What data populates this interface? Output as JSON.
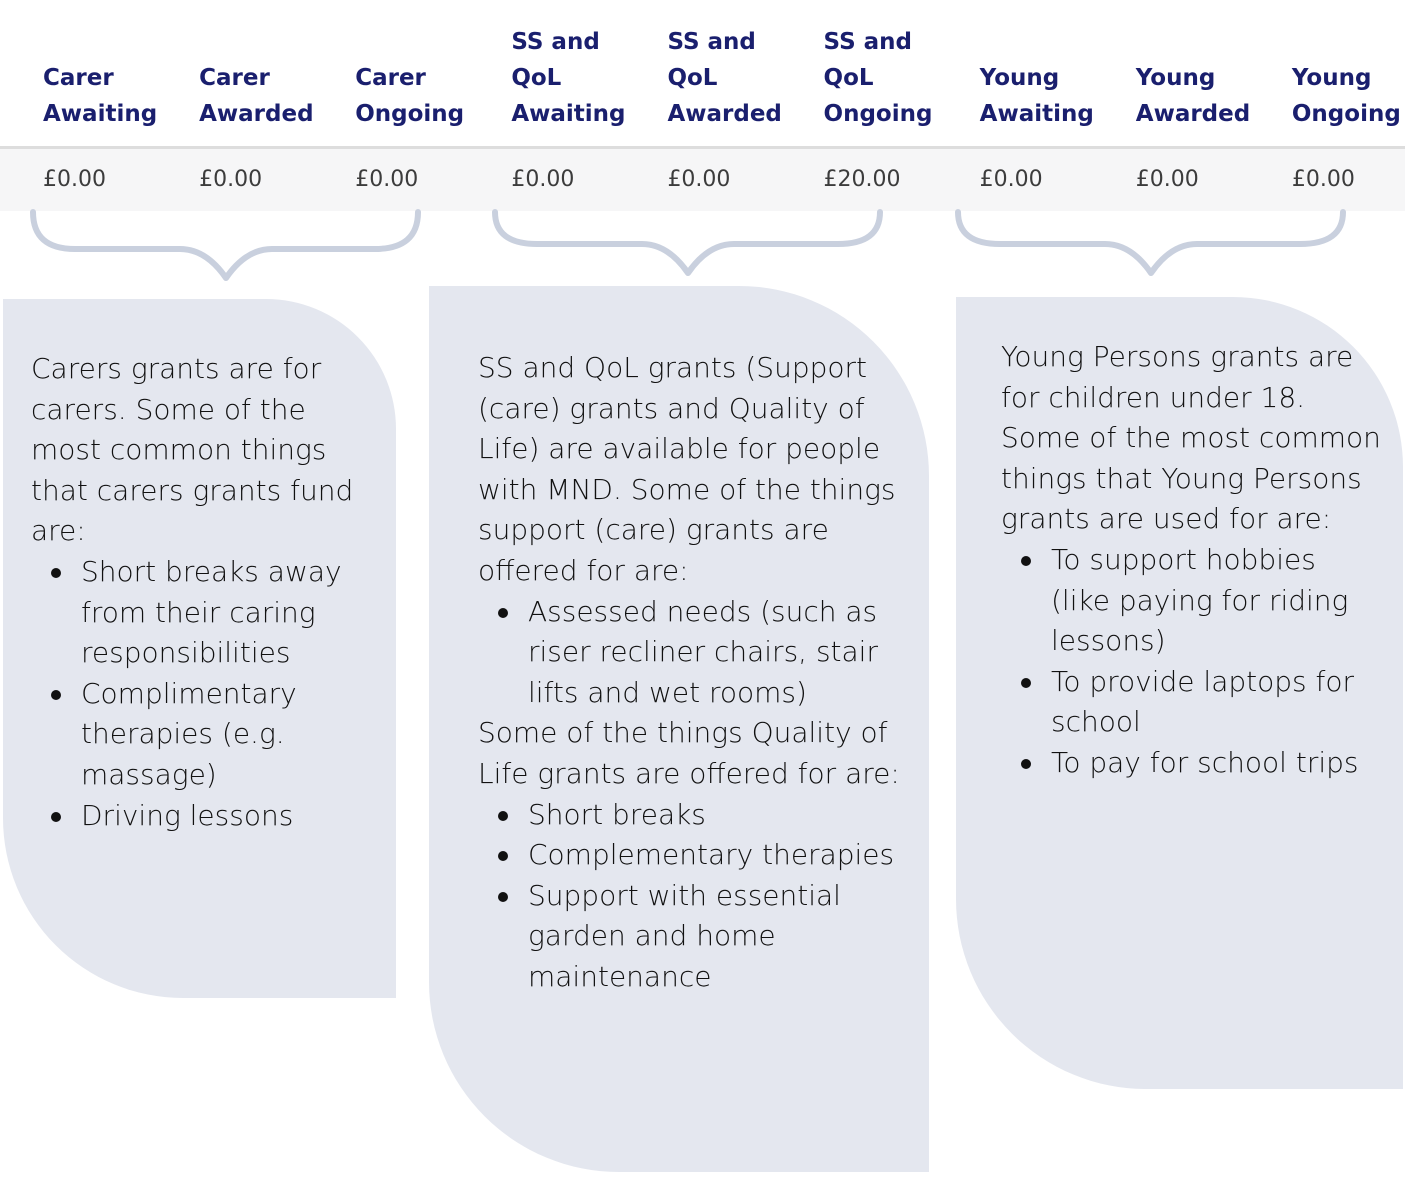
{
  "table": {
    "headers": [
      "Carer Awaiting",
      "Carer Awarded",
      "Carer Ongoing",
      "SS and QoL Awaiting",
      "SS and QoL Awarded",
      "SS and QoL Ongoing",
      "Young Awaiting",
      "Young Awarded",
      "Young Ongoing"
    ],
    "values": [
      "£0.00",
      "£0.00",
      "£0.00",
      "£0.00",
      "£0.00",
      "£20.00",
      "£0.00",
      "£0.00",
      "£0.00"
    ]
  },
  "cards": {
    "carers": {
      "intro": "Carers grants are for carers. Some of the most common things that carers grants fund are:",
      "items": [
        "Short breaks away from their caring responsibilities",
        "Complimentary therapies (e.g. massage)",
        "Driving lessons"
      ]
    },
    "ssqol": {
      "intro": "SS and QoL grants (Support (care) grants and Quality of Life) are available for people with MND.  Some of the things support (care) grants are offered for are:",
      "items": [
        "Assessed needs (such as riser recliner chairs, stair lifts and wet rooms)"
      ],
      "intro2": "Some of the things Quality of Life grants are offered for are:",
      "items2": [
        "Short breaks",
        "Complementary therapies",
        "Support with essential garden and home maintenance"
      ]
    },
    "young": {
      "intro": "Young Persons grants are for children under 18. Some of the most common things that Young Persons grants are used for are:",
      "items": [
        "To support hobbies (like paying for riding lessons)",
        "To provide laptops for school",
        "To pay for school trips"
      ]
    }
  },
  "colors": {
    "header_text": "#1a1f6e",
    "card_background": "#e4e7ef",
    "brace": "#c9d0de",
    "row_background": "#f6f6f7"
  }
}
